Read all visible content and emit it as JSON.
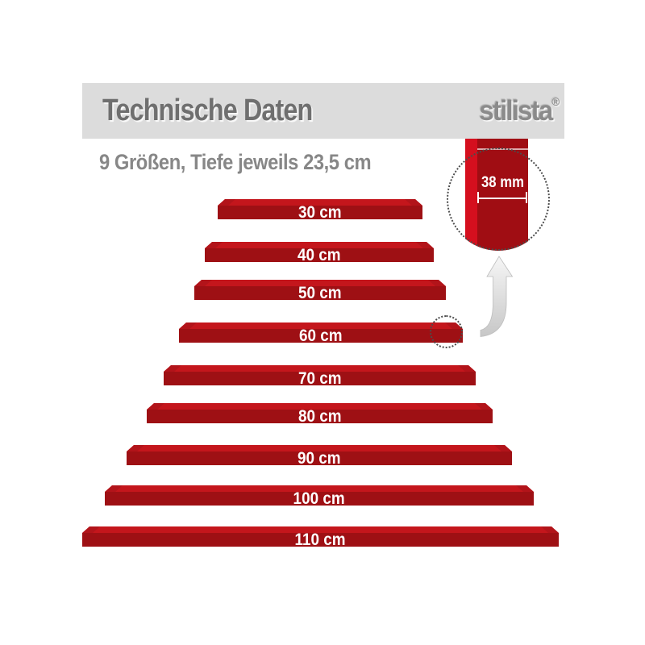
{
  "header": {
    "banner_title": "Technische Daten",
    "brand": "stilista",
    "brand_mark": "®"
  },
  "intro": {
    "subtitle": "9 Größen, Tiefe jeweils 23,5 cm"
  },
  "diagram": {
    "shelf_labels": [
      "30 cm",
      "40 cm",
      "50 cm",
      "60 cm",
      "70 cm",
      "80 cm",
      "90 cm",
      "100 cm",
      "110 cm"
    ],
    "detail_thickness": "38 mm"
  },
  "colors": {
    "banner_bg": "#dcdcdc",
    "title_gray": "#6f6f6f",
    "subtitle_gray": "#878787",
    "logo_gray": "#8b8b8b",
    "shelf_front_red": "#9e1014",
    "shelf_top_red": "#c4161c",
    "shelf_edge_red": "#b2141a",
    "edge_stripe_red": "#d50f1e",
    "detail_dark_red": "#a00d13"
  }
}
